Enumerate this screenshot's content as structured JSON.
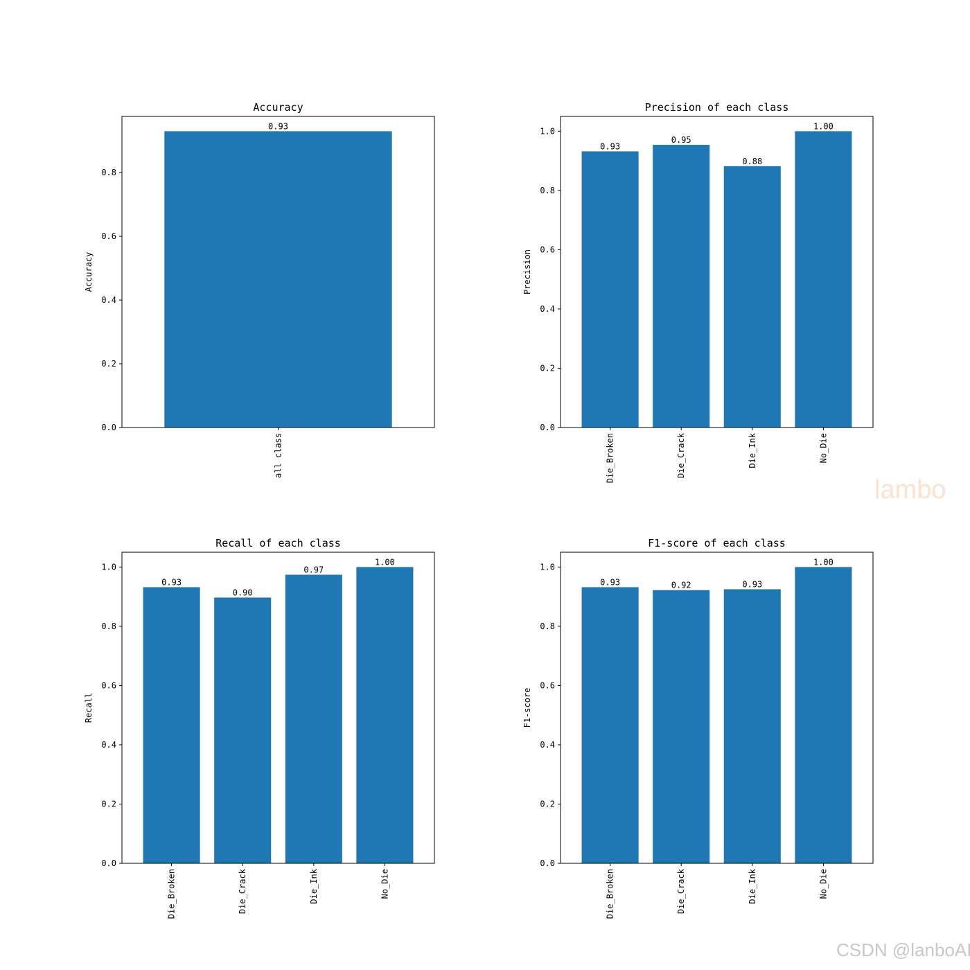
{
  "chart_data": [
    {
      "type": "bar",
      "title": "Accuracy",
      "ylabel": "Accuracy",
      "categories": [
        "all class"
      ],
      "values": [
        0.93
      ],
      "value_labels": [
        "0.93"
      ],
      "yticks": [
        "0.0",
        "0.2",
        "0.4",
        "0.6",
        "0.8"
      ],
      "ylim": [
        0,
        0.9765
      ],
      "color": "#1f77b4"
    },
    {
      "type": "bar",
      "title": "Precision of each class",
      "ylabel": "Precision",
      "categories": [
        "Die_Broken",
        "Die_Crack",
        "Die_Ink",
        "No_Die"
      ],
      "values": [
        0.932,
        0.954,
        0.882,
        1.0
      ],
      "value_labels": [
        "0.93",
        "0.95",
        "0.88",
        "1.00"
      ],
      "yticks": [
        "0.0",
        "0.2",
        "0.4",
        "0.6",
        "0.8",
        "1.0"
      ],
      "ylim": [
        0,
        1.05
      ],
      "color": "#1f77b4"
    },
    {
      "type": "bar",
      "title": "Recall of each class",
      "ylabel": "Recall",
      "categories": [
        "Die_Broken",
        "Die_Crack",
        "Die_Ink",
        "No_Die"
      ],
      "values": [
        0.932,
        0.897,
        0.974,
        1.0
      ],
      "value_labels": [
        "0.93",
        "0.90",
        "0.97",
        "1.00"
      ],
      "yticks": [
        "0.0",
        "0.2",
        "0.4",
        "0.6",
        "0.8",
        "1.0"
      ],
      "ylim": [
        0,
        1.05
      ],
      "color": "#1f77b4"
    },
    {
      "type": "bar",
      "title": "F1-score of each class",
      "ylabel": "F1-score",
      "categories": [
        "Die_Broken",
        "Die_Crack",
        "Die_Ink",
        "No_Die"
      ],
      "values": [
        0.932,
        0.922,
        0.925,
        1.0
      ],
      "value_labels": [
        "0.93",
        "0.92",
        "0.93",
        "1.00"
      ],
      "yticks": [
        "0.0",
        "0.2",
        "0.4",
        "0.6",
        "0.8",
        "1.0"
      ],
      "ylim": [
        0,
        1.05
      ],
      "color": "#1f77b4"
    }
  ],
  "watermarks": {
    "side": "lambo",
    "footer": "CSDN @lanboAI"
  }
}
